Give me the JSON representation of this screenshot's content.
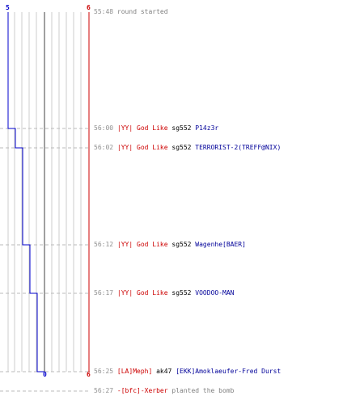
{
  "graph": {
    "top_left_score": "5",
    "top_right_score": "6",
    "bottom_mid_score": "0",
    "bottom_right_score": "6",
    "colors": {
      "ct_line": "#0000cc",
      "t_line": "#cc0000",
      "grid": "#cccccc",
      "midline": "#808080",
      "dashed": "#bbbbbb"
    }
  },
  "events": [
    {
      "time": "55:48",
      "parts": [
        {
          "text": "round started",
          "style": "grey"
        }
      ]
    },
    {
      "time": "56:00",
      "parts": [
        {
          "text": "|YY| God Like",
          "style": "red"
        },
        {
          "text": "sg552",
          "style": "black"
        },
        {
          "text": "P14z3r",
          "style": "blue"
        }
      ]
    },
    {
      "time": "56:02",
      "parts": [
        {
          "text": "|YY| God Like",
          "style": "red"
        },
        {
          "text": "sg552",
          "style": "black"
        },
        {
          "text": "TERRORIST-2(TREFF@NIX)",
          "style": "blue"
        }
      ]
    },
    {
      "time": "56:12",
      "parts": [
        {
          "text": "|YY| God Like",
          "style": "red"
        },
        {
          "text": "sg552",
          "style": "black"
        },
        {
          "text": "Wagenhe[BAER]",
          "style": "blue"
        }
      ]
    },
    {
      "time": "56:17",
      "parts": [
        {
          "text": "|YY| God Like",
          "style": "red"
        },
        {
          "text": "sg552",
          "style": "black"
        },
        {
          "text": "VOODOO-MAN",
          "style": "blue"
        }
      ]
    },
    {
      "time": "56:25",
      "parts": [
        {
          "text": "[LA]Meph]",
          "style": "red"
        },
        {
          "text": "ak47",
          "style": "black"
        },
        {
          "text": "[EKK]Amoklaeufer-Fred Durst",
          "style": "blue"
        }
      ]
    },
    {
      "time": "56:27",
      "parts": [
        {
          "text": "-[bfc]-Xerber",
          "style": "red"
        },
        {
          "text": "planted the bomb",
          "style": "grey"
        }
      ]
    }
  ]
}
